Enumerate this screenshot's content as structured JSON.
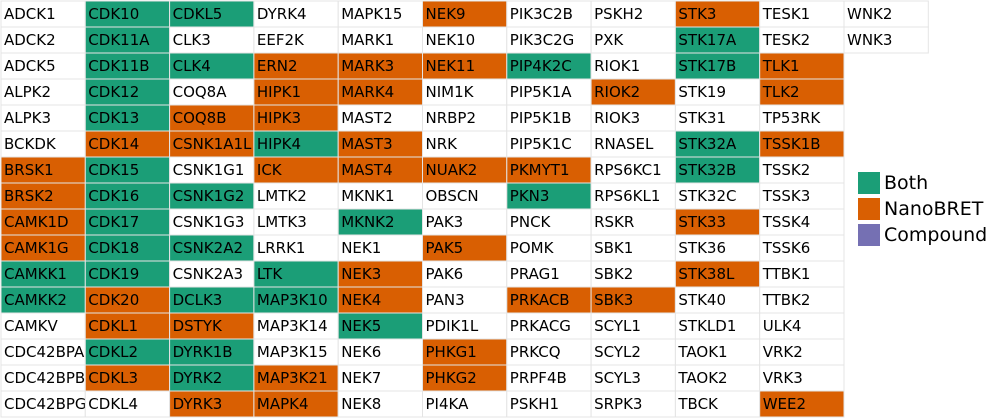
{
  "chart_data": {
    "type": "heatmap",
    "title": "",
    "categories": [
      "Both",
      "NanoBRET",
      "Compound"
    ],
    "colors": {
      "Both": "#1b9e77",
      "NanoBRET": "#d95f02",
      "Compound": "#7570b3",
      "none": "#ffffff"
    },
    "columns": [
      [
        [
          "ADCK1",
          ""
        ],
        [
          "ADCK2",
          ""
        ],
        [
          "ADCK5",
          ""
        ],
        [
          "ALPK2",
          ""
        ],
        [
          "ALPK3",
          ""
        ],
        [
          "BCKDK",
          ""
        ],
        [
          "BRSK1",
          "NanoBRET"
        ],
        [
          "BRSK2",
          "NanoBRET"
        ],
        [
          "CAMK1D",
          "NanoBRET"
        ],
        [
          "CAMK1G",
          "NanoBRET"
        ],
        [
          "CAMKK1",
          "Both"
        ],
        [
          "CAMKK2",
          "Both"
        ],
        [
          "CAMKV",
          ""
        ],
        [
          "CDC42BPA",
          ""
        ],
        [
          "CDC42BPB",
          ""
        ],
        [
          "CDC42BPG",
          ""
        ]
      ],
      [
        [
          "CDK10",
          "Both"
        ],
        [
          "CDK11A",
          "Both"
        ],
        [
          "CDK11B",
          "Both"
        ],
        [
          "CDK12",
          "Both"
        ],
        [
          "CDK13",
          "Both"
        ],
        [
          "CDK14",
          "NanoBRET"
        ],
        [
          "CDK15",
          "Both"
        ],
        [
          "CDK16",
          "Both"
        ],
        [
          "CDK17",
          "Both"
        ],
        [
          "CDK18",
          "Both"
        ],
        [
          "CDK19",
          "Both"
        ],
        [
          "CDK20",
          "NanoBRET"
        ],
        [
          "CDKL1",
          "NanoBRET"
        ],
        [
          "CDKL2",
          "Both"
        ],
        [
          "CDKL3",
          "NanoBRET"
        ],
        [
          "CDKL4",
          ""
        ]
      ],
      [
        [
          "CDKL5",
          "Both"
        ],
        [
          "CLK3",
          ""
        ],
        [
          "CLK4",
          "Both"
        ],
        [
          "COQ8A",
          ""
        ],
        [
          "COQ8B",
          "NanoBRET"
        ],
        [
          "CSNK1A1L",
          "NanoBRET"
        ],
        [
          "CSNK1G1",
          ""
        ],
        [
          "CSNK1G2",
          "Both"
        ],
        [
          "CSNK1G3",
          ""
        ],
        [
          "CSNK2A2",
          "Both"
        ],
        [
          "CSNK2A3",
          ""
        ],
        [
          "DCLK3",
          "Both"
        ],
        [
          "DSTYK",
          "NanoBRET"
        ],
        [
          "DYRK1B",
          "Both"
        ],
        [
          "DYRK2",
          "Both"
        ],
        [
          "DYRK3",
          "NanoBRET"
        ]
      ],
      [
        [
          "DYRK4",
          ""
        ],
        [
          "EEF2K",
          ""
        ],
        [
          "ERN2",
          "NanoBRET"
        ],
        [
          "HIPK1",
          "NanoBRET"
        ],
        [
          "HIPK3",
          "NanoBRET"
        ],
        [
          "HIPK4",
          "Both"
        ],
        [
          "ICK",
          "NanoBRET"
        ],
        [
          "LMTK2",
          ""
        ],
        [
          "LMTK3",
          ""
        ],
        [
          "LRRK1",
          ""
        ],
        [
          "LTK",
          "Both"
        ],
        [
          "MAP3K10",
          "Both"
        ],
        [
          "MAP3K14",
          ""
        ],
        [
          "MAP3K15",
          ""
        ],
        [
          "MAP3K21",
          "NanoBRET"
        ],
        [
          "MAPK4",
          "NanoBRET"
        ]
      ],
      [
        [
          "MAPK15",
          ""
        ],
        [
          "MARK1",
          ""
        ],
        [
          "MARK3",
          "NanoBRET"
        ],
        [
          "MARK4",
          "NanoBRET"
        ],
        [
          "MAST2",
          ""
        ],
        [
          "MAST3",
          "NanoBRET"
        ],
        [
          "MAST4",
          "NanoBRET"
        ],
        [
          "MKNK1",
          ""
        ],
        [
          "MKNK2",
          "Both"
        ],
        [
          "NEK1",
          ""
        ],
        [
          "NEK3",
          "NanoBRET"
        ],
        [
          "NEK4",
          "NanoBRET"
        ],
        [
          "NEK5",
          "Both"
        ],
        [
          "NEK6",
          ""
        ],
        [
          "NEK7",
          ""
        ],
        [
          "NEK8",
          ""
        ]
      ],
      [
        [
          "NEK9",
          "NanoBRET"
        ],
        [
          "NEK10",
          ""
        ],
        [
          "NEK11",
          "NanoBRET"
        ],
        [
          "NIM1K",
          ""
        ],
        [
          "NRBP2",
          ""
        ],
        [
          "NRK",
          ""
        ],
        [
          "NUAK2",
          "NanoBRET"
        ],
        [
          "OBSCN",
          ""
        ],
        [
          "PAK3",
          ""
        ],
        [
          "PAK5",
          "NanoBRET"
        ],
        [
          "PAK6",
          ""
        ],
        [
          "PAN3",
          ""
        ],
        [
          "PDIK1L",
          ""
        ],
        [
          "PHKG1",
          "NanoBRET"
        ],
        [
          "PHKG2",
          "NanoBRET"
        ],
        [
          "PI4KA",
          ""
        ]
      ],
      [
        [
          "PIK3C2B",
          ""
        ],
        [
          "PIK3C2G",
          ""
        ],
        [
          "PIP4K2C",
          "Both"
        ],
        [
          "PIP5K1A",
          ""
        ],
        [
          "PIP5K1B",
          ""
        ],
        [
          "PIP5K1C",
          ""
        ],
        [
          "PKMYT1",
          "NanoBRET"
        ],
        [
          "PKN3",
          "Both"
        ],
        [
          "PNCK",
          ""
        ],
        [
          "POMK",
          ""
        ],
        [
          "PRAG1",
          ""
        ],
        [
          "PRKACB",
          "NanoBRET"
        ],
        [
          "PRKACG",
          ""
        ],
        [
          "PRKCQ",
          ""
        ],
        [
          "PRPF4B",
          ""
        ],
        [
          "PSKH1",
          ""
        ]
      ],
      [
        [
          "PSKH2",
          ""
        ],
        [
          "PXK",
          ""
        ],
        [
          "RIOK1",
          ""
        ],
        [
          "RIOK2",
          "NanoBRET"
        ],
        [
          "RIOK3",
          ""
        ],
        [
          "RNASEL",
          ""
        ],
        [
          "RPS6KC1",
          ""
        ],
        [
          "RPS6KL1",
          ""
        ],
        [
          "RSKR",
          ""
        ],
        [
          "SBK1",
          ""
        ],
        [
          "SBK2",
          ""
        ],
        [
          "SBK3",
          "NanoBRET"
        ],
        [
          "SCYL1",
          ""
        ],
        [
          "SCYL2",
          ""
        ],
        [
          "SCYL3",
          ""
        ],
        [
          "SRPK3",
          ""
        ]
      ],
      [
        [
          "STK3",
          "NanoBRET"
        ],
        [
          "STK17A",
          "Both"
        ],
        [
          "STK17B",
          "Both"
        ],
        [
          "STK19",
          ""
        ],
        [
          "STK31",
          ""
        ],
        [
          "STK32A",
          "Both"
        ],
        [
          "STK32B",
          "Both"
        ],
        [
          "STK32C",
          ""
        ],
        [
          "STK33",
          "NanoBRET"
        ],
        [
          "STK36",
          ""
        ],
        [
          "STK38L",
          "NanoBRET"
        ],
        [
          "STK40",
          ""
        ],
        [
          "STKLD1",
          ""
        ],
        [
          "TAOK1",
          ""
        ],
        [
          "TAOK2",
          ""
        ],
        [
          "TBCK",
          ""
        ]
      ],
      [
        [
          "TESK1",
          ""
        ],
        [
          "TESK2",
          ""
        ],
        [
          "TLK1",
          "NanoBRET"
        ],
        [
          "TLK2",
          "NanoBRET"
        ],
        [
          "TP53RK",
          ""
        ],
        [
          "TSSK1B",
          "NanoBRET"
        ],
        [
          "TSSK2",
          ""
        ],
        [
          "TSSK3",
          ""
        ],
        [
          "TSSK4",
          ""
        ],
        [
          "TSSK6",
          ""
        ],
        [
          "TTBK1",
          ""
        ],
        [
          "TTBK2",
          ""
        ],
        [
          "ULK4",
          ""
        ],
        [
          "VRK2",
          ""
        ],
        [
          "VRK3",
          ""
        ],
        [
          "WEE2",
          "NanoBRET"
        ]
      ],
      [
        [
          "WNK2",
          ""
        ],
        [
          "WNK3",
          ""
        ]
      ]
    ]
  }
}
